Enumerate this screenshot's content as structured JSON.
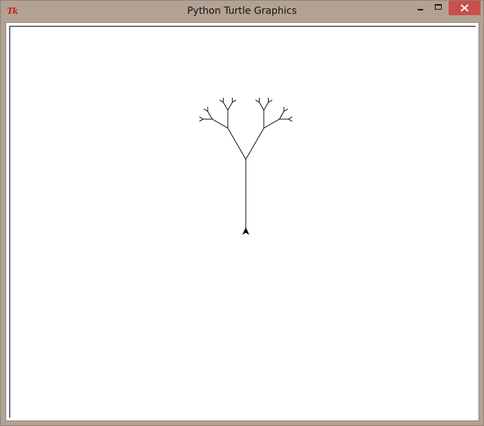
{
  "window": {
    "title": "Python Turtle Graphics",
    "app_icon_text": "Tk",
    "app_icon_color": "#d21b1b"
  },
  "titlebar_buttons": {
    "minimize_icon": "minimize-icon",
    "maximize_icon": "maximize-icon",
    "close_icon": "close-icon",
    "close_color": "#c9504b"
  },
  "drawing": {
    "type": "fractal-tree",
    "branch_angle_deg": 30,
    "length_ratio": 0.5,
    "levels": 5,
    "pen_color": "#000000",
    "background_color": "#ffffff"
  }
}
